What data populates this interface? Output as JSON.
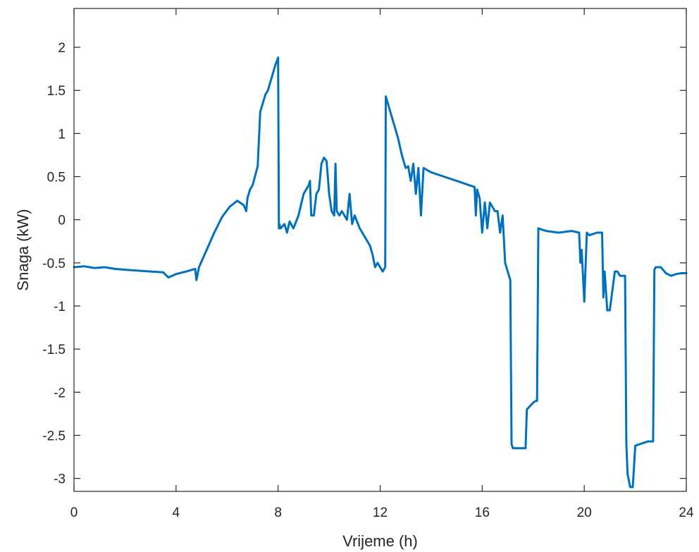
{
  "chart_data": {
    "type": "line",
    "title": "",
    "xlabel": "Vrijeme (h)",
    "ylabel": "Snaga (kW)",
    "xlim": [
      0,
      24
    ],
    "ylim": [
      -3.15,
      2.45
    ],
    "xticks": [
      0,
      4,
      8,
      12,
      16,
      20,
      24
    ],
    "yticks": [
      2,
      1.5,
      1,
      0.5,
      0,
      -0.5,
      -1,
      -1.5,
      -2,
      -2.5,
      -3
    ],
    "ytick_labels": [
      "2",
      "1.5",
      "1",
      "0.5",
      "0",
      "-0.5",
      "-1",
      "-1.5",
      "-2",
      "-2.5",
      "-3"
    ],
    "grid": false,
    "legend": "none",
    "color": "#0072BD",
    "series": [
      {
        "x": [
          0,
          0.4,
          0.8,
          1.2,
          1.6,
          2.0,
          2.5,
          3.0,
          3.5,
          3.7,
          4.0,
          4.4,
          4.75,
          4.8,
          4.9,
          5.2,
          5.5,
          5.8,
          6.1,
          6.4,
          6.65,
          6.75,
          6.8,
          6.9,
          7.0,
          7.2,
          7.3,
          7.5,
          7.6,
          7.7,
          7.8,
          7.9,
          8.0,
          8.03,
          8.05,
          8.1,
          8.25,
          8.35,
          8.45,
          8.6,
          8.8,
          9.0,
          9.2,
          9.25,
          9.3,
          9.4,
          9.5,
          9.6,
          9.7,
          9.8,
          9.9,
          10.0,
          10.1,
          10.2,
          10.25,
          10.3,
          10.4,
          10.5,
          10.6,
          10.7,
          10.8,
          10.9,
          11.0,
          11.2,
          11.4,
          11.6,
          11.7,
          11.8,
          11.9,
          12.0,
          12.1,
          12.2,
          12.22,
          12.3,
          12.5,
          12.7,
          12.85,
          12.9,
          13.0,
          13.1,
          13.2,
          13.3,
          13.4,
          13.5,
          13.6,
          13.7,
          14.0,
          14.5,
          15.0,
          15.5,
          15.7,
          15.75,
          15.8,
          15.9,
          16.0,
          16.1,
          16.2,
          16.3,
          16.5,
          16.6,
          16.7,
          16.8,
          16.9,
          17.0,
          17.1,
          17.15,
          17.2,
          17.5,
          17.7,
          17.75,
          18.0,
          18.1,
          18.15,
          18.2,
          18.5,
          19.0,
          19.5,
          19.8,
          19.85,
          19.9,
          20.0,
          20.1,
          20.2,
          20.5,
          20.7,
          20.75,
          20.8,
          20.9,
          21.0,
          21.2,
          21.3,
          21.4,
          21.6,
          21.65,
          21.7,
          21.8,
          21.9,
          22.0,
          22.5,
          22.7,
          22.75,
          22.8,
          23.0,
          23.2,
          23.4,
          23.6,
          23.8,
          24.0
        ],
        "y": [
          -0.55,
          -0.54,
          -0.56,
          -0.55,
          -0.57,
          -0.58,
          -0.59,
          -0.6,
          -0.61,
          -0.67,
          -0.63,
          -0.6,
          -0.57,
          -0.7,
          -0.55,
          -0.35,
          -0.15,
          0.03,
          0.15,
          0.22,
          0.17,
          0.1,
          0.25,
          0.35,
          0.4,
          0.62,
          1.25,
          1.45,
          1.5,
          1.6,
          1.7,
          1.8,
          1.88,
          -0.1,
          -0.05,
          -0.1,
          -0.05,
          -0.15,
          -0.02,
          -0.1,
          0.05,
          0.3,
          0.4,
          0.45,
          0.05,
          0.05,
          0.3,
          0.35,
          0.65,
          0.72,
          0.68,
          0.3,
          0.1,
          0.05,
          0.65,
          0.1,
          0.05,
          0.1,
          0.05,
          0.0,
          0.3,
          -0.05,
          0.05,
          -0.1,
          -0.2,
          -0.3,
          -0.4,
          -0.55,
          -0.5,
          -0.55,
          -0.6,
          -0.55,
          1.43,
          1.35,
          1.15,
          0.95,
          0.75,
          0.7,
          0.6,
          0.62,
          0.45,
          0.65,
          0.3,
          0.6,
          0.05,
          0.6,
          0.55,
          0.5,
          0.45,
          0.4,
          0.38,
          0.05,
          0.35,
          0.25,
          -0.15,
          0.2,
          -0.1,
          0.2,
          0.1,
          0.1,
          -0.15,
          0.05,
          -0.5,
          -0.6,
          -0.7,
          -2.6,
          -2.65,
          -2.65,
          -2.65,
          -2.2,
          -2.12,
          -2.1,
          -2.1,
          -0.1,
          -0.13,
          -0.15,
          -0.13,
          -0.15,
          -0.5,
          -0.35,
          -0.95,
          -0.15,
          -0.18,
          -0.15,
          -0.15,
          -0.9,
          -0.6,
          -1.05,
          -1.05,
          -0.6,
          -0.6,
          -0.65,
          -0.65,
          -2.6,
          -2.95,
          -3.1,
          -3.1,
          -2.62,
          -2.57,
          -2.57,
          -0.58,
          -0.55,
          -0.55,
          -0.62,
          -0.65,
          -0.63,
          -0.62,
          -0.62
        ]
      }
    ]
  }
}
